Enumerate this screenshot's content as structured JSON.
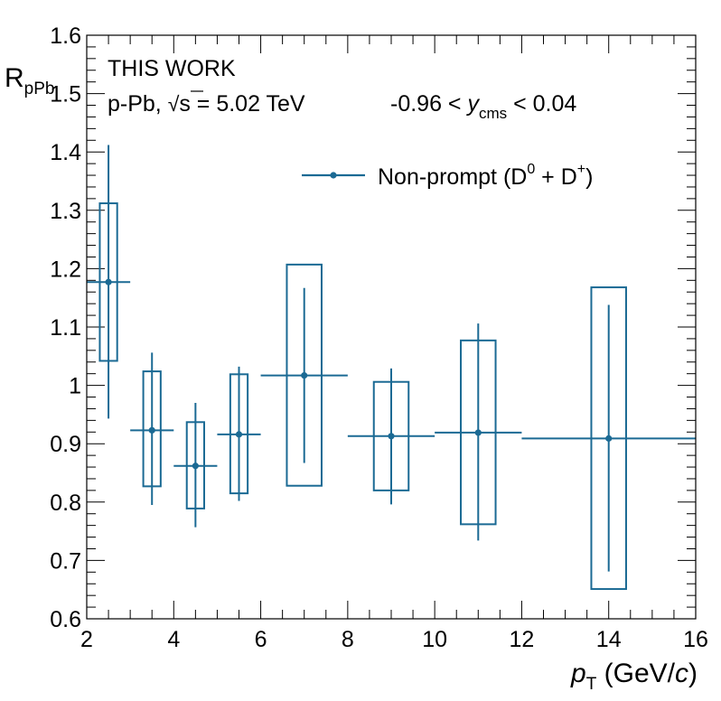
{
  "chart_data": {
    "type": "scatter",
    "xlabel": {
      "main": "p",
      "sub": "T",
      "unit_open": " (GeV/",
      "unit_italic": "c",
      "unit_close": ")"
    },
    "ylabel": {
      "main": "R",
      "sub": "pPb"
    },
    "xlim": [
      2,
      16
    ],
    "ylim": [
      0.6,
      1.6
    ],
    "x_ticks": [
      "2",
      "4",
      "6",
      "8",
      "10",
      "12",
      "14",
      "16"
    ],
    "y_ticks": [
      "0.6",
      "0.7",
      "0.8",
      "0.9",
      "1",
      "1.1",
      "1.2",
      "1.3",
      "1.4",
      "1.5",
      "1.6"
    ],
    "annotations": {
      "work": "THIS WORK",
      "system_prefix": "p-Pb, ",
      "sqrt_symbol": "√",
      "sqrt_var": "s",
      "energy": " = 5.02 TeV",
      "rapidity_low": "-0.96 < ",
      "rapidity_var": "y",
      "rapidity_sub": "cms",
      "rapidity_high": " < 0.04"
    },
    "legend": {
      "placement": "top-right",
      "text_before": "Non-prompt (D",
      "sup1": "0",
      "text_mid": " + D",
      "sup2": "+",
      "text_after": ")"
    },
    "color": "#1b6a94",
    "series": [
      {
        "points": [
          {
            "x": 2.5,
            "y": 1.177,
            "xlow": 2,
            "xhigh": 3,
            "stat_low": 0.943,
            "stat_high": 1.412,
            "sys_low": 1.042,
            "sys_high": 1.312
          },
          {
            "x": 3.5,
            "y": 0.923,
            "xlow": 3,
            "xhigh": 4,
            "stat_low": 0.795,
            "stat_high": 1.056,
            "sys_low": 0.827,
            "sys_high": 1.024
          },
          {
            "x": 4.5,
            "y": 0.862,
            "xlow": 4,
            "xhigh": 5,
            "stat_low": 0.757,
            "stat_high": 0.97,
            "sys_low": 0.789,
            "sys_high": 0.937
          },
          {
            "x": 5.5,
            "y": 0.916,
            "xlow": 5,
            "xhigh": 6,
            "stat_low": 0.802,
            "stat_high": 1.032,
            "sys_low": 0.815,
            "sys_high": 1.019
          },
          {
            "x": 7,
            "y": 1.017,
            "xlow": 6,
            "xhigh": 8,
            "stat_low": 0.867,
            "stat_high": 1.167,
            "sys_low": 0.828,
            "sys_high": 1.207
          },
          {
            "x": 9,
            "y": 0.913,
            "xlow": 8,
            "xhigh": 10,
            "stat_low": 0.796,
            "stat_high": 1.029,
            "sys_low": 0.82,
            "sys_high": 1.006
          },
          {
            "x": 11,
            "y": 0.919,
            "xlow": 10,
            "xhigh": 12,
            "stat_low": 0.734,
            "stat_high": 1.106,
            "sys_low": 0.762,
            "sys_high": 1.077
          },
          {
            "x": 14,
            "y": 0.909,
            "xlow": 12,
            "xhigh": 16,
            "stat_low": 0.681,
            "stat_high": 1.138,
            "sys_low": 0.651,
            "sys_high": 1.168
          }
        ]
      }
    ]
  }
}
